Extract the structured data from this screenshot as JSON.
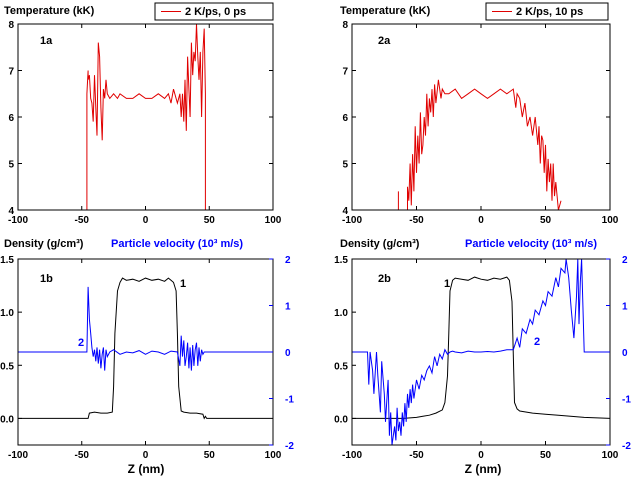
{
  "figure": {
    "xlabel": "Z (nm)",
    "colors": {
      "red": "#e00000",
      "black": "#000000",
      "blue": "#0000ff",
      "axis": "#000000"
    }
  },
  "chart_data": [
    {
      "id": "1a",
      "type": "line",
      "ylabel": "Temperature (kK)",
      "panel_label": "1a",
      "legend": "2 K/ps, 0 ps",
      "legend_position": "top-right",
      "xlim": [
        -100,
        100
      ],
      "ylim": [
        4,
        8
      ],
      "xticks": [
        -100,
        -50,
        0,
        50,
        100
      ],
      "yticks": [
        4,
        5,
        6,
        7,
        8
      ],
      "series": [
        {
          "color": "#e00000",
          "x": [
            -46,
            -46,
            -45,
            -45,
            -44,
            -43,
            -42,
            -41,
            -40,
            -39,
            -38,
            -37,
            -36,
            -35,
            -34,
            -33,
            -32,
            -31,
            -30,
            -28,
            -25,
            -22,
            -20,
            -15,
            -10,
            -5,
            0,
            5,
            10,
            15,
            18,
            20,
            22,
            25,
            27,
            28,
            29,
            30,
            31,
            32,
            33,
            34,
            35,
            36,
            37,
            38,
            39,
            40,
            41,
            42,
            43,
            44,
            45,
            46,
            47,
            47
          ],
          "y": [
            4,
            6.5,
            7.0,
            6.8,
            6.9,
            6.4,
            6.3,
            5.9,
            6.9,
            6.2,
            5.6,
            7.6,
            7.3,
            6.2,
            5.5,
            6.6,
            6.4,
            6.8,
            6.5,
            6.4,
            6.5,
            6.4,
            6.5,
            6.4,
            6.4,
            6.5,
            6.4,
            6.4,
            6.5,
            6.4,
            6.5,
            6.3,
            6.6,
            6.3,
            6.5,
            6.0,
            6.5,
            5.9,
            6.8,
            5.7,
            7.3,
            6.6,
            6.0,
            7.6,
            6.9,
            7.4,
            7.2,
            8.0,
            7.3,
            6.8,
            7.4,
            6.0,
            7.4,
            7.9,
            6.5,
            4
          ]
        }
      ]
    },
    {
      "id": "2a",
      "type": "line",
      "ylabel": "Temperature (kK)",
      "panel_label": "2a",
      "legend": "2 K/ps, 10 ps",
      "legend_position": "top-right",
      "xlim": [
        -100,
        100
      ],
      "ylim": [
        4,
        8
      ],
      "xticks": [
        -100,
        -50,
        0,
        50,
        100
      ],
      "yticks": [
        4,
        5,
        6,
        7,
        8
      ],
      "series": [
        {
          "color": "#e00000",
          "x": [
            -64,
            -64,
            -64,
            -57,
            -57,
            -56,
            -55,
            -54,
            -53,
            -52,
            -51,
            -50,
            -49,
            -48,
            -47,
            -46,
            -45,
            -44,
            -43,
            -42,
            -41,
            -40,
            -39,
            -38,
            -37,
            -36,
            -35,
            -33,
            -31,
            -30,
            -28,
            -25,
            -20,
            -15,
            -10,
            -5,
            0,
            5,
            10,
            15,
            20,
            25,
            27,
            28,
            30,
            32,
            34,
            36,
            38,
            40,
            42,
            44,
            45,
            46,
            47,
            48,
            49,
            50,
            51,
            52,
            53,
            54,
            55,
            56,
            57,
            58,
            60,
            62
          ],
          "y": [
            4,
            4.4,
            4,
            4,
            4.5,
            4.2,
            5.0,
            4.1,
            5.2,
            4.4,
            5.8,
            4.8,
            5.6,
            5.0,
            6.1,
            5.2,
            5.4,
            6.0,
            5.6,
            6.5,
            5.8,
            6.4,
            6.1,
            6.6,
            6.0,
            6.7,
            6.3,
            6.8,
            6.4,
            6.6,
            6.5,
            6.5,
            6.6,
            6.4,
            6.5,
            6.6,
            6.5,
            6.4,
            6.5,
            6.6,
            6.5,
            6.6,
            6.2,
            6.5,
            6.4,
            6.0,
            6.3,
            5.8,
            6.0,
            5.6,
            6.0,
            5.4,
            5.8,
            5.0,
            5.6,
            5.5,
            4.8,
            5.4,
            4.4,
            5.1,
            4.6,
            5.0,
            4.2,
            5.0,
            4.3,
            4.6,
            4.0,
            4.2
          ]
        }
      ]
    },
    {
      "id": "1b",
      "type": "line",
      "ylabel": "Density (g/cm³)",
      "y2label": "Particle velocity (10³ m/s)",
      "panel_label": "1b",
      "xlim": [
        -100,
        100
      ],
      "ylim": [
        -0.25,
        1.5
      ],
      "y2lim": [
        -2,
        2
      ],
      "xticks": [
        -100,
        -50,
        0,
        50,
        100
      ],
      "yticks": [
        0.0,
        0.5,
        1.0,
        1.5
      ],
      "y2ticks": [
        -2,
        -1,
        0,
        1,
        2
      ],
      "series": [
        {
          "color": "#000000",
          "axis": "left",
          "label": "1",
          "x": [
            -100,
            -45,
            -44,
            -40,
            -35,
            -30,
            -26,
            -25,
            -24,
            -22,
            -20,
            -18,
            -15,
            -10,
            -5,
            0,
            5,
            10,
            15,
            18,
            20,
            22,
            24,
            25,
            26,
            28,
            30,
            35,
            40,
            45,
            46,
            47,
            48,
            50,
            100
          ],
          "y": [
            0,
            0,
            0.05,
            0.06,
            0.05,
            0.05,
            0.06,
            0.3,
            0.8,
            1.2,
            1.28,
            1.32,
            1.3,
            1.31,
            1.29,
            1.32,
            1.3,
            1.31,
            1.29,
            1.32,
            1.3,
            1.28,
            1.2,
            0.8,
            0.3,
            0.07,
            0.06,
            0.05,
            0.05,
            0.04,
            0.0,
            0.02,
            0.0,
            0.0,
            0.0
          ]
        },
        {
          "color": "#0000ff",
          "axis": "right",
          "label": "2",
          "x": [
            -100,
            -46,
            -45,
            -44,
            -43,
            -42,
            -41,
            -40,
            -39,
            -38,
            -37,
            -36,
            -35,
            -34,
            -33,
            -32,
            -31,
            -30,
            -28,
            -25,
            -20,
            -15,
            -10,
            -5,
            0,
            5,
            10,
            15,
            20,
            25,
            27,
            28,
            29,
            30,
            31,
            32,
            33,
            34,
            35,
            36,
            37,
            38,
            39,
            40,
            41,
            42,
            43,
            44,
            45,
            46,
            100
          ],
          "y": [
            0,
            0,
            1.4,
            0.7,
            0.4,
            0.1,
            -0.1,
            0.05,
            -0.2,
            0.1,
            -0.25,
            0.05,
            -0.35,
            -0.05,
            0.1,
            -0.4,
            0.05,
            -0.1,
            0.0,
            0.05,
            -0.05,
            0.0,
            -0.02,
            0.03,
            -0.05,
            0.02,
            0.0,
            -0.05,
            0.02,
            0.0,
            -0.3,
            0.35,
            -0.1,
            0.25,
            -0.3,
            -0.1,
            0.2,
            -0.35,
            0.1,
            -0.4,
            0.15,
            -0.3,
            0.05,
            0.2,
            -0.3,
            0.1,
            -0.2,
            0.05,
            -0.05,
            0.0,
            0.0
          ]
        }
      ]
    },
    {
      "id": "2b",
      "type": "line",
      "ylabel": "Density (g/cm³)",
      "y2label": "Particle velocity (10³ m/s)",
      "panel_label": "2b",
      "xlim": [
        -100,
        100
      ],
      "ylim": [
        -0.25,
        1.5
      ],
      "y2lim": [
        -2,
        2
      ],
      "xticks": [
        -100,
        -50,
        0,
        50,
        100
      ],
      "yticks": [
        0.0,
        0.5,
        1.0,
        1.5
      ],
      "y2ticks": [
        -2,
        -1,
        0,
        1,
        2
      ],
      "series": [
        {
          "color": "#000000",
          "axis": "left",
          "label": "1",
          "x": [
            -100,
            -80,
            -60,
            -50,
            -45,
            -40,
            -35,
            -30,
            -28,
            -26,
            -25,
            -24,
            -22,
            -20,
            -15,
            -10,
            -5,
            0,
            5,
            10,
            15,
            20,
            22,
            24,
            25,
            26,
            28,
            30,
            40,
            50,
            60,
            80,
            100
          ],
          "y": [
            0,
            0,
            0.0,
            0.01,
            0.02,
            0.03,
            0.05,
            0.08,
            0.15,
            0.4,
            0.8,
            1.2,
            1.3,
            1.32,
            1.31,
            1.3,
            1.33,
            1.31,
            1.3,
            1.32,
            1.31,
            1.33,
            1.3,
            1.1,
            0.6,
            0.15,
            0.09,
            0.07,
            0.05,
            0.04,
            0.03,
            0.01,
            0.0
          ]
        },
        {
          "color": "#0000ff",
          "axis": "right",
          "label": "2",
          "x": [
            -100,
            -88,
            -87,
            -86,
            -84,
            -83,
            -81,
            -80,
            -78,
            -77,
            -75,
            -74,
            -72,
            -71,
            -70,
            -69,
            -67,
            -66,
            -65,
            -64,
            -63,
            -62,
            -61,
            -60,
            -59,
            -58,
            -57,
            -56,
            -55,
            -54,
            -53,
            -52,
            -50,
            -48,
            -46,
            -44,
            -42,
            -40,
            -38,
            -36,
            -34,
            -32,
            -30,
            -28,
            -26,
            -24,
            -22,
            -20,
            -15,
            -10,
            -5,
            0,
            5,
            10,
            15,
            20,
            25,
            28,
            30,
            32,
            35,
            38,
            40,
            42,
            45,
            48,
            50,
            52,
            55,
            58,
            60,
            62,
            65,
            66,
            68,
            70,
            72,
            74,
            75,
            76,
            77,
            78,
            79,
            80,
            82,
            85,
            100
          ],
          "y": [
            0,
            0,
            -0.7,
            0.0,
            -0.4,
            -0.9,
            0.0,
            -0.5,
            -1.3,
            -0.2,
            -0.9,
            -1.5,
            -0.6,
            -1.8,
            -1.3,
            -2.0,
            -1.6,
            -1.9,
            -1.2,
            -1.7,
            -1.5,
            -1.8,
            -1.3,
            -1.6,
            -1.1,
            -1.5,
            -0.9,
            -1.2,
            -0.8,
            -1.1,
            -0.7,
            -1.0,
            -0.6,
            -0.8,
            -0.5,
            -0.6,
            -0.4,
            -0.3,
            -0.45,
            -0.1,
            -0.3,
            -0.05,
            -0.15,
            0.05,
            -0.05,
            0.0,
            0.02,
            0.0,
            -0.02,
            0.02,
            0.0,
            0.0,
            0.01,
            0.0,
            0.02,
            0.05,
            0.05,
            0.3,
            0.1,
            0.5,
            0.4,
            0.7,
            0.6,
            0.9,
            0.8,
            1.1,
            1.0,
            1.3,
            1.2,
            1.6,
            1.4,
            1.8,
            1.7,
            2.0,
            1.6,
            0.9,
            0.3,
            1.2,
            2.0,
            0.6,
            1.5,
            2.0,
            1.0,
            0.0,
            0.0,
            0.0,
            0.0
          ]
        }
      ]
    }
  ]
}
